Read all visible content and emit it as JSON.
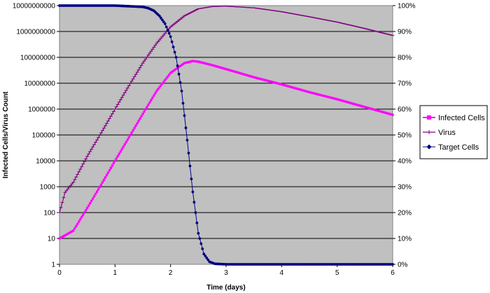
{
  "chart_data": {
    "type": "line",
    "xlabel": "Time (days)",
    "ylabel": "Infected Cells/Virus Count",
    "x_ticks": [
      "0",
      "1",
      "2",
      "3",
      "4",
      "5",
      "6"
    ],
    "xlim": [
      0,
      6
    ],
    "y_scale": "log",
    "ylim": [
      1,
      10000000000
    ],
    "y_ticks": [
      "1",
      "10",
      "100",
      "1000",
      "10000",
      "100000",
      "1000000",
      "10000000",
      "100000000",
      "1000000000",
      "10000000000"
    ],
    "y2_ticks": [
      "0%",
      "10%",
      "20%",
      "30%",
      "40%",
      "50%",
      "60%",
      "70%",
      "80%",
      "90%",
      "100%"
    ],
    "y2lim": [
      0,
      100
    ],
    "grid": "horizontal",
    "legend_position": "right",
    "colors": {
      "plot_background": "#c0c0c0",
      "infected": "#ff00ff",
      "virus": "#800080",
      "target": "#000080"
    },
    "series": [
      {
        "name": "Infected Cells",
        "axis": "left",
        "x": [
          0,
          0.25,
          0.5,
          0.75,
          1.0,
          1.25,
          1.5,
          1.75,
          2.0,
          2.25,
          2.4,
          2.5,
          2.75,
          3.0,
          3.5,
          4.0,
          4.5,
          5.0,
          5.5,
          6.0
        ],
        "values": [
          10,
          20,
          150,
          1200,
          10000,
          80000,
          650000,
          5000000,
          25000000,
          60000000,
          72000000,
          68000000,
          50000000,
          35000000,
          17000000,
          9000000,
          4500000,
          2400000,
          1200000,
          600000
        ]
      },
      {
        "name": "Virus",
        "axis": "left",
        "x": [
          0,
          0.1,
          0.25,
          0.5,
          0.75,
          1.0,
          1.25,
          1.5,
          1.75,
          2.0,
          2.25,
          2.5,
          2.75,
          3.0,
          3.5,
          4.0,
          4.5,
          5.0,
          5.5,
          6.0
        ],
        "values": [
          100,
          600,
          1500,
          15000,
          120000,
          1000000,
          8000000,
          60000000,
          350000000,
          1500000000,
          4000000000,
          7500000000,
          9200000000,
          9500000000,
          8200000000,
          5800000000,
          3700000000,
          2300000000,
          1300000000,
          700000000
        ]
      },
      {
        "name": "Target Cells",
        "axis": "right",
        "x": [
          0,
          0.5,
          1.0,
          1.5,
          1.6,
          1.7,
          1.8,
          1.9,
          2.0,
          2.1,
          2.2,
          2.3,
          2.4,
          2.5,
          2.6,
          2.7,
          2.8,
          3.0,
          4.0,
          5.0,
          6.0
        ],
        "values": [
          100,
          100,
          100,
          99.5,
          99,
          98,
          96,
          93,
          88,
          80,
          67,
          48,
          28,
          12,
          4,
          1,
          0.2,
          0,
          0,
          0,
          0
        ]
      }
    ]
  }
}
